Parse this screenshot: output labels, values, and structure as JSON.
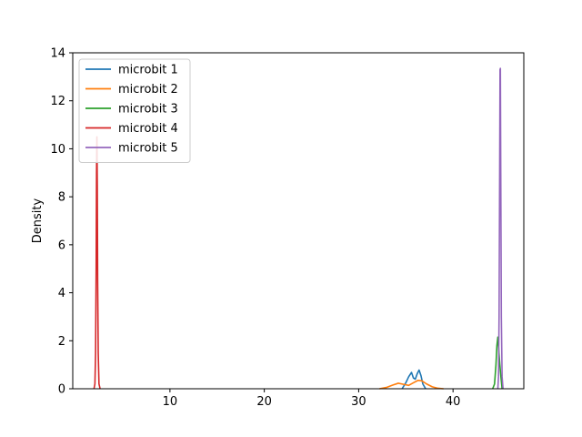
{
  "chart_data": {
    "type": "line",
    "title": "",
    "xlabel": "",
    "ylabel": "Density",
    "xlim": [
      -0.3,
      47.5
    ],
    "ylim": [
      0,
      14
    ],
    "x_ticks": [
      10,
      20,
      30,
      40
    ],
    "y_ticks": [
      0,
      2,
      4,
      6,
      8,
      10,
      12,
      14
    ],
    "grid": false,
    "legend": "upper-left",
    "series": [
      {
        "name": "microbit 1",
        "color": "#1f77b4",
        "x": [
          34.6,
          35.0,
          35.3,
          35.6,
          35.8,
          36.0,
          36.2,
          36.4,
          36.6,
          36.8,
          37.1
        ],
        "y": [
          0.0,
          0.25,
          0.5,
          0.68,
          0.45,
          0.4,
          0.62,
          0.78,
          0.55,
          0.2,
          0.0
        ]
      },
      {
        "name": "microbit 2",
        "color": "#ff7f0e",
        "x": [
          32.2,
          33.0,
          33.6,
          34.2,
          34.8,
          35.3,
          35.8,
          36.3,
          36.7,
          37.2,
          37.8,
          38.4,
          39.0
        ],
        "y": [
          0.0,
          0.06,
          0.15,
          0.23,
          0.18,
          0.14,
          0.25,
          0.35,
          0.33,
          0.2,
          0.08,
          0.02,
          0.0
        ]
      },
      {
        "name": "microbit 3",
        "color": "#2ca02c",
        "x": [
          44.2,
          44.4,
          44.55,
          44.65,
          44.75,
          44.85,
          44.95,
          45.05,
          45.2
        ],
        "y": [
          0.0,
          0.2,
          1.0,
          1.8,
          2.15,
          1.6,
          1.05,
          0.6,
          0.0
        ]
      },
      {
        "name": "microbit 4",
        "color": "#d62728",
        "x": [
          1.95,
          2.05,
          2.12,
          2.18,
          2.22,
          2.26,
          2.3,
          2.34,
          2.4,
          2.48,
          2.6
        ],
        "y": [
          0.0,
          0.2,
          1.5,
          5.0,
          9.0,
          10.5,
          8.5,
          4.5,
          1.5,
          0.2,
          0.0
        ]
      },
      {
        "name": "microbit 5",
        "color": "#9467bd",
        "x": [
          44.75,
          44.82,
          44.88,
          44.94,
          44.98,
          45.02,
          45.06,
          45.12,
          45.2,
          45.3
        ],
        "y": [
          0.0,
          0.5,
          3.0,
          9.0,
          13.3,
          13.35,
          9.0,
          3.0,
          0.5,
          0.0
        ]
      }
    ]
  }
}
